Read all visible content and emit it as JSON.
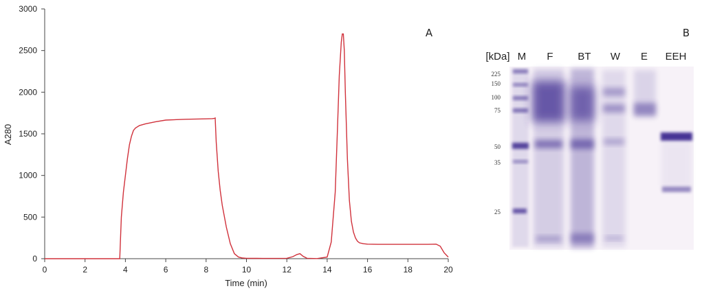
{
  "chart_data": {
    "type": "line",
    "panel_label": "A",
    "xlabel": "Time (min)",
    "ylabel": "A280",
    "xlim": [
      0,
      20
    ],
    "ylim": [
      0,
      3000
    ],
    "x_ticks": [
      0,
      2,
      4,
      6,
      8,
      10,
      12,
      14,
      16,
      18,
      20
    ],
    "y_ticks": [
      0,
      500,
      1000,
      1500,
      2000,
      2500,
      3000
    ],
    "grid": false,
    "series": [
      {
        "color": "#d0303a",
        "x": [
          0,
          1,
          2,
          3,
          3.6,
          3.72,
          3.75,
          3.8,
          3.9,
          4.0,
          4.1,
          4.2,
          4.3,
          4.4,
          4.5,
          4.7,
          5.0,
          5.5,
          6.0,
          7.0,
          8.0,
          8.3,
          8.4,
          8.45,
          8.5,
          8.6,
          8.7,
          8.8,
          9.0,
          9.2,
          9.4,
          9.6,
          9.8,
          10.0,
          10.5,
          11.0,
          11.5,
          12.0,
          12.3,
          12.5,
          12.65,
          12.8,
          13.0,
          13.5,
          14.0,
          14.2,
          14.4,
          14.5,
          14.6,
          14.7,
          14.75,
          14.8,
          14.85,
          14.9,
          15.0,
          15.1,
          15.2,
          15.3,
          15.4,
          15.5,
          15.6,
          15.8,
          16.0,
          16.5,
          17.0,
          18.0,
          19.0,
          19.4,
          19.6,
          19.8,
          20.0
        ],
        "y": [
          0,
          0,
          0,
          0,
          0,
          0,
          200,
          500,
          800,
          1000,
          1200,
          1370,
          1470,
          1540,
          1570,
          1600,
          1620,
          1645,
          1665,
          1675,
          1680,
          1682,
          1685,
          1690,
          1400,
          1050,
          820,
          640,
          380,
          180,
          60,
          20,
          8,
          5,
          4,
          3,
          3,
          5,
          25,
          50,
          60,
          30,
          5,
          2,
          20,
          200,
          800,
          1500,
          2200,
          2600,
          2700,
          2700,
          2500,
          2000,
          1200,
          700,
          450,
          320,
          250,
          210,
          190,
          180,
          175,
          172,
          172,
          172,
          172,
          175,
          150,
          70,
          20
        ]
      }
    ]
  },
  "gel": {
    "panel_label": "B",
    "unit_label": "[kDa]",
    "lanes": [
      "M",
      "F",
      "BT",
      "W",
      "E",
      "EEH"
    ],
    "marker_kda": [
      "225",
      "150",
      "100",
      "75",
      "50",
      "35",
      "25"
    ],
    "band_color": "#3d2c90",
    "background_color": "#f7f2f8"
  }
}
